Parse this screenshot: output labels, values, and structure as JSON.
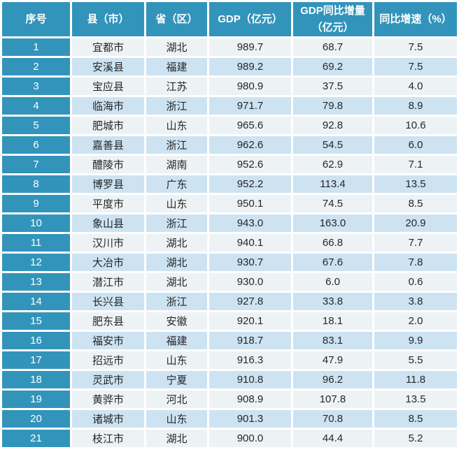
{
  "colors": {
    "header_bg": "#3294BA",
    "index_column_bg": "#3294BA",
    "row_odd_bg": "#EDF2F5",
    "row_even_bg": "#CDE3F2",
    "header_text": "#FFFFFF",
    "data_text": "#262626",
    "grid_gap": "#FFFFFF"
  },
  "chart_data": {
    "type": "table",
    "columns": [
      "序号",
      "县（市）",
      "省（区）",
      "GDP（亿元）",
      "GDP同比增量（亿元）",
      "同比增速（%）"
    ],
    "rows": [
      [
        "1",
        "宜都市",
        "湖北",
        "989.7",
        "68.7",
        "7.5"
      ],
      [
        "2",
        "安溪县",
        "福建",
        "989.2",
        "69.2",
        "7.5"
      ],
      [
        "3",
        "宝应县",
        "江苏",
        "980.9",
        "37.5",
        "4.0"
      ],
      [
        "4",
        "临海市",
        "浙江",
        "971.7",
        "79.8",
        "8.9"
      ],
      [
        "5",
        "肥城市",
        "山东",
        "965.6",
        "92.8",
        "10.6"
      ],
      [
        "6",
        "嘉善县",
        "浙江",
        "962.6",
        "54.5",
        "6.0"
      ],
      [
        "7",
        "醴陵市",
        "湖南",
        "952.6",
        "62.9",
        "7.1"
      ],
      [
        "8",
        "博罗县",
        "广东",
        "952.2",
        "113.4",
        "13.5"
      ],
      [
        "9",
        "平度市",
        "山东",
        "950.1",
        "74.5",
        "8.5"
      ],
      [
        "10",
        "象山县",
        "浙江",
        "943.0",
        "163.0",
        "20.9"
      ],
      [
        "11",
        "汉川市",
        "湖北",
        "940.1",
        "66.8",
        "7.7"
      ],
      [
        "12",
        "大冶市",
        "湖北",
        "930.7",
        "67.6",
        "7.8"
      ],
      [
        "13",
        "潜江市",
        "湖北",
        "930.0",
        "6.0",
        "0.6"
      ],
      [
        "14",
        "长兴县",
        "浙江",
        "927.8",
        "33.8",
        "3.8"
      ],
      [
        "15",
        "肥东县",
        "安徽",
        "920.1",
        "18.1",
        "2.0"
      ],
      [
        "16",
        "福安市",
        "福建",
        "918.7",
        "83.1",
        "9.9"
      ],
      [
        "17",
        "招远市",
        "山东",
        "916.3",
        "47.9",
        "5.5"
      ],
      [
        "18",
        "灵武市",
        "宁夏",
        "910.8",
        "96.2",
        "11.8"
      ],
      [
        "19",
        "黄骅市",
        "河北",
        "908.9",
        "107.8",
        "13.5"
      ],
      [
        "20",
        "诸城市",
        "山东",
        "901.3",
        "70.8",
        "8.5"
      ],
      [
        "21",
        "枝江市",
        "湖北",
        "900.0",
        "44.4",
        "5.2"
      ]
    ]
  }
}
